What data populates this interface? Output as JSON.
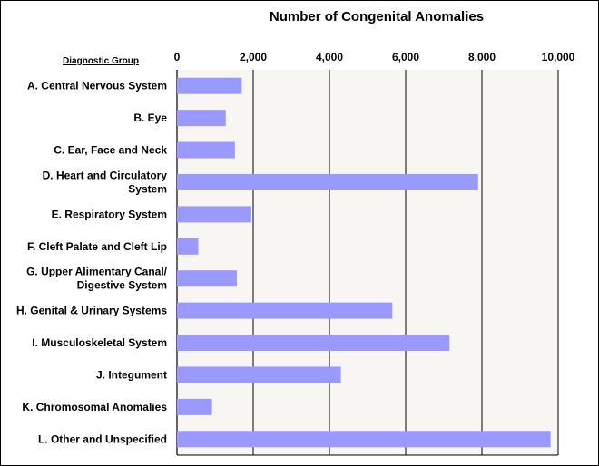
{
  "chart_data": {
    "type": "bar",
    "orientation": "horizontal",
    "title": "Number of Congenital Anomalies",
    "ylabel": "Diagnostic Group",
    "xlabel": "",
    "xlim": [
      0,
      10000
    ],
    "x_ticks": [
      "0",
      "2,000",
      "4,000",
      "6,000",
      "8,000",
      "10,000"
    ],
    "x_tick_values": [
      0,
      2000,
      4000,
      6000,
      8000,
      10000
    ],
    "x_axis_position": "top",
    "grid": true,
    "categories": [
      [
        "A. Central Nervous System"
      ],
      [
        "B. Eye"
      ],
      [
        "C. Ear, Face and Neck"
      ],
      [
        "D. Heart and Circulatory",
        "System"
      ],
      [
        "E. Respiratory System"
      ],
      [
        "F. Cleft Palate and Cleft Lip"
      ],
      [
        "G. Upper Alimentary Canal/",
        "Digestive System"
      ],
      [
        "H. Genital & Urinary Systems"
      ],
      [
        "I. Musculoskeletal System"
      ],
      [
        "J. Integument"
      ],
      [
        "K. Chromosomal Anomalies"
      ],
      [
        "L. Other and Unspecified"
      ]
    ],
    "values": [
      1700,
      1280,
      1520,
      7900,
      1950,
      560,
      1570,
      5650,
      7150,
      4300,
      920,
      9800
    ],
    "colors": {
      "bar": "#9999ff",
      "plot_background": "#f8f6f2",
      "grid": "#000000"
    }
  }
}
